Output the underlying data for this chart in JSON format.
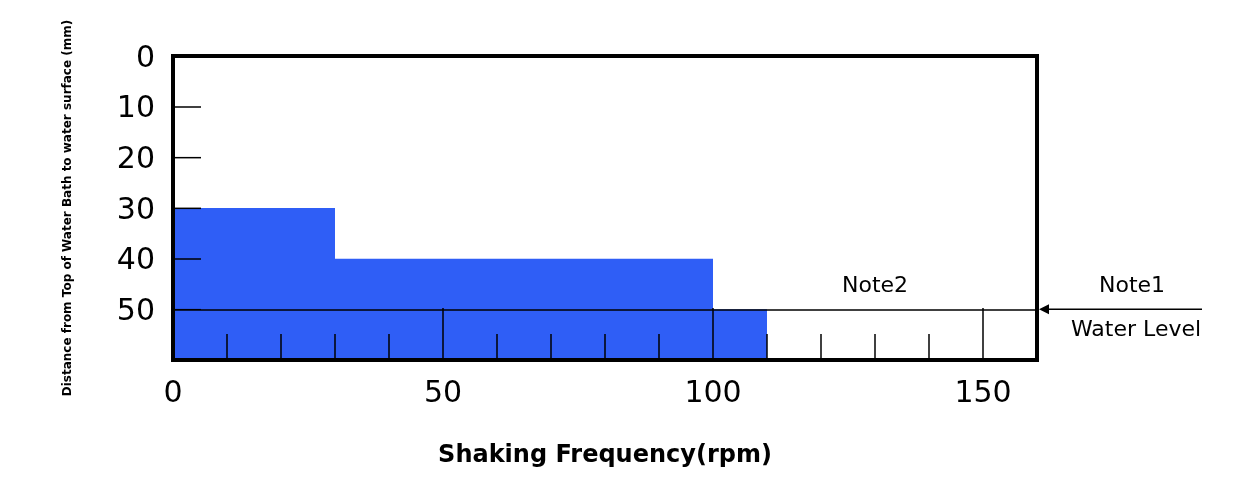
{
  "chart_data": {
    "type": "histogram",
    "xlabel": "Shaking Frequency(rpm)",
    "ylabel": "Distance from Top of Water Bath to water surface (mm)",
    "bins": [
      0,
      30,
      100,
      110
    ],
    "base": [
      60,
      60,
      60
    ],
    "values": [
      -30,
      -20,
      -10
    ],
    "color": "#2f5ef6",
    "xlim": [
      0,
      160
    ],
    "xticks": [
      0,
      50,
      100,
      150
    ],
    "ylim": [
      60,
      0
    ],
    "yticks": [
      0,
      10,
      20,
      30,
      40,
      50
    ],
    "ref_lines": [
      {
        "axis": "y",
        "value": 50,
        "label": "Water Level",
        "color": "#000000",
        "line_style": "solid"
      }
    ],
    "annotations": [
      "Note1",
      {
        "text": "Note2",
        "x": 130,
        "y": 50
      }
    ],
    "grid": false
  }
}
